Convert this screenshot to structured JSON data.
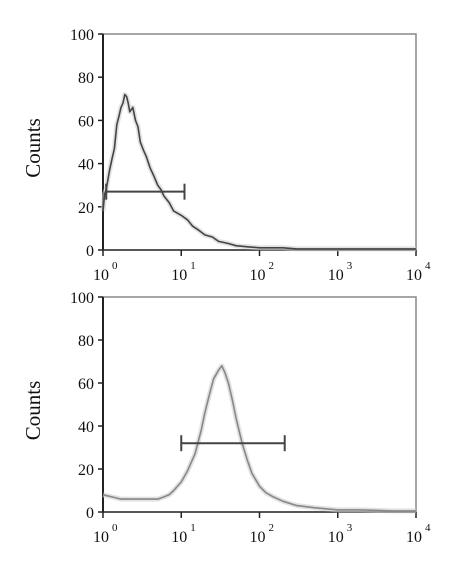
{
  "chart_data": [
    {
      "type": "line",
      "panel": "top",
      "ylabel": "Counts",
      "xlabel": "",
      "x_scale": "log",
      "xlim": [
        1,
        10000
      ],
      "ylim": [
        0,
        100
      ],
      "y_ticks": [
        "0",
        "20",
        "40",
        "60",
        "80",
        "100"
      ],
      "x_ticks": [
        {
          "base": "10",
          "exp": "0"
        },
        {
          "base": "10",
          "exp": "1"
        },
        {
          "base": "10",
          "exp": "2"
        },
        {
          "base": "10",
          "exp": "3"
        },
        {
          "base": "10",
          "exp": "4"
        }
      ],
      "series": [
        {
          "x": [
            1.0,
            1.05,
            1.1,
            1.2,
            1.3,
            1.4,
            1.5,
            1.6,
            1.7,
            1.8,
            1.9,
            2.0,
            2.1,
            2.2,
            2.4,
            2.6,
            2.8,
            3.0,
            3.3,
            3.6,
            4.0,
            4.5,
            5.0,
            5.5,
            6.0,
            7.0,
            8.0,
            9.0,
            10,
            12,
            14,
            17,
            20,
            25,
            30,
            40,
            50,
            70,
            100,
            150,
            200,
            300,
            500,
            700,
            1000,
            2000,
            5000,
            10000
          ],
          "values": [
            18,
            26,
            28,
            36,
            42,
            47,
            58,
            62,
            66,
            68,
            72,
            71,
            68,
            64,
            66,
            60,
            57,
            50,
            46,
            43,
            38,
            34,
            30,
            28,
            25,
            22,
            18,
            17,
            16,
            14,
            11,
            9,
            7,
            6,
            4,
            3,
            2,
            1.5,
            1,
            1,
            1,
            0.5,
            0.5,
            0.5,
            0.5,
            0.5,
            0.5,
            0.5
          ],
          "color": "#444444"
        }
      ],
      "gate": {
        "x_start": 1.1,
        "x_end": 11,
        "y": 27
      },
      "grid": false
    },
    {
      "type": "line",
      "panel": "bottom",
      "ylabel": "Counts",
      "xlabel": "",
      "x_scale": "log",
      "xlim": [
        1,
        10000
      ],
      "ylim": [
        0,
        100
      ],
      "y_ticks": [
        "0",
        "20",
        "40",
        "60",
        "80",
        "100"
      ],
      "x_ticks": [
        {
          "base": "10",
          "exp": "0"
        },
        {
          "base": "10",
          "exp": "1"
        },
        {
          "base": "10",
          "exp": "2"
        },
        {
          "base": "10",
          "exp": "3"
        },
        {
          "base": "10",
          "exp": "4"
        }
      ],
      "series": [
        {
          "x": [
            1.0,
            1.3,
            1.7,
            2.0,
            3.0,
            4.0,
            5.0,
            6.0,
            7.0,
            8.0,
            10,
            12,
            15,
            18,
            20,
            23,
            26,
            30,
            33,
            36,
            40,
            45,
            50,
            60,
            70,
            80,
            100,
            120,
            150,
            200,
            300,
            500,
            700,
            1000,
            2000,
            5000,
            10000
          ],
          "values": [
            8,
            7,
            6,
            6,
            6,
            6,
            6,
            7,
            8,
            10,
            14,
            19,
            27,
            38,
            46,
            55,
            62,
            66,
            68,
            65,
            60,
            52,
            44,
            32,
            24,
            18,
            12,
            9,
            7,
            5,
            3,
            2,
            1.5,
            1,
            1,
            0.5,
            0.5
          ],
          "color": "#888888"
        }
      ],
      "gate": {
        "x_start": 10,
        "x_end": 210,
        "y": 32
      },
      "grid": false
    }
  ]
}
